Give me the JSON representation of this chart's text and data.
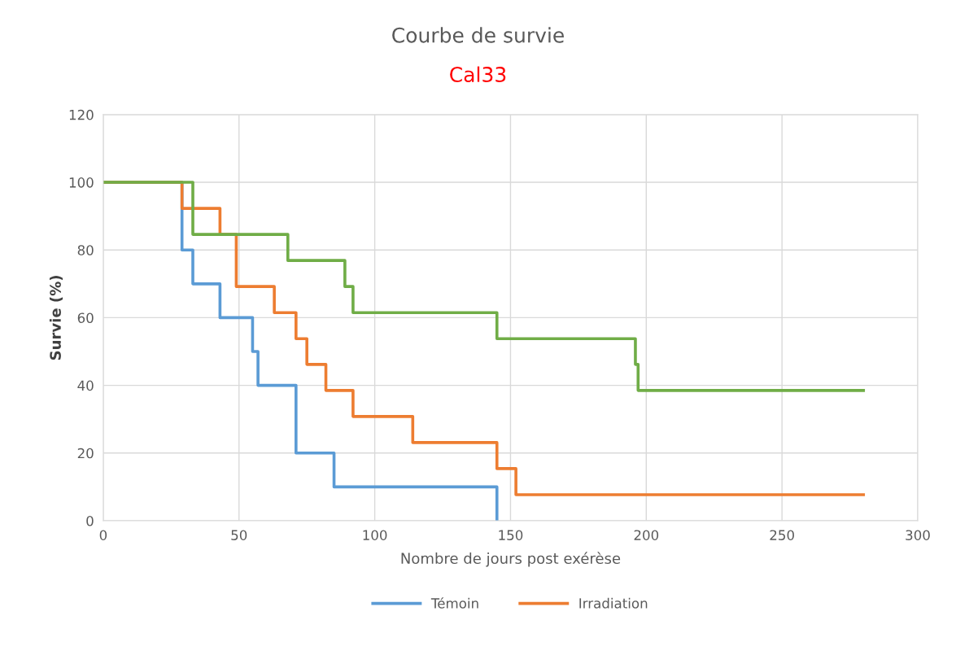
{
  "chart_data": {
    "type": "step",
    "title": "Courbe de survie",
    "subtitle": "Cal33",
    "xlabel": "Nombre de jours post exérèse",
    "ylabel": "Survie (%)",
    "series": [
      {
        "name": "Témoin",
        "color": "#5b9bd5",
        "x": [
          0,
          29,
          33,
          43,
          55,
          57,
          71,
          85,
          145
        ],
        "values": [
          100,
          80,
          70,
          60,
          50,
          40,
          20,
          10,
          0
        ]
      },
      {
        "name": "Irradiation",
        "color": "#ed7d31",
        "x": [
          0,
          29,
          43,
          49,
          63,
          71,
          75,
          82,
          92,
          114,
          145,
          152,
          280
        ],
        "values": [
          100,
          92.3,
          84.6,
          69.2,
          61.5,
          53.8,
          46.2,
          38.5,
          30.8,
          23.1,
          15.4,
          7.7,
          7.7
        ]
      },
      {
        "color": "#70ad47",
        "x": [
          0,
          33,
          68,
          89,
          92,
          145,
          196,
          197,
          280
        ],
        "values": [
          100,
          84.6,
          76.9,
          69.2,
          61.5,
          53.8,
          46.2,
          38.5,
          38.5
        ]
      }
    ],
    "xlim": [
      0,
      300
    ],
    "xticks": [
      0,
      50,
      100,
      150,
      200,
      250,
      300
    ],
    "ylim": [
      0,
      120
    ],
    "yticks": [
      0,
      20,
      40,
      60,
      80,
      100,
      120
    ],
    "grid": true,
    "legend": "bottom",
    "marker": "none",
    "line_style": "solid"
  }
}
